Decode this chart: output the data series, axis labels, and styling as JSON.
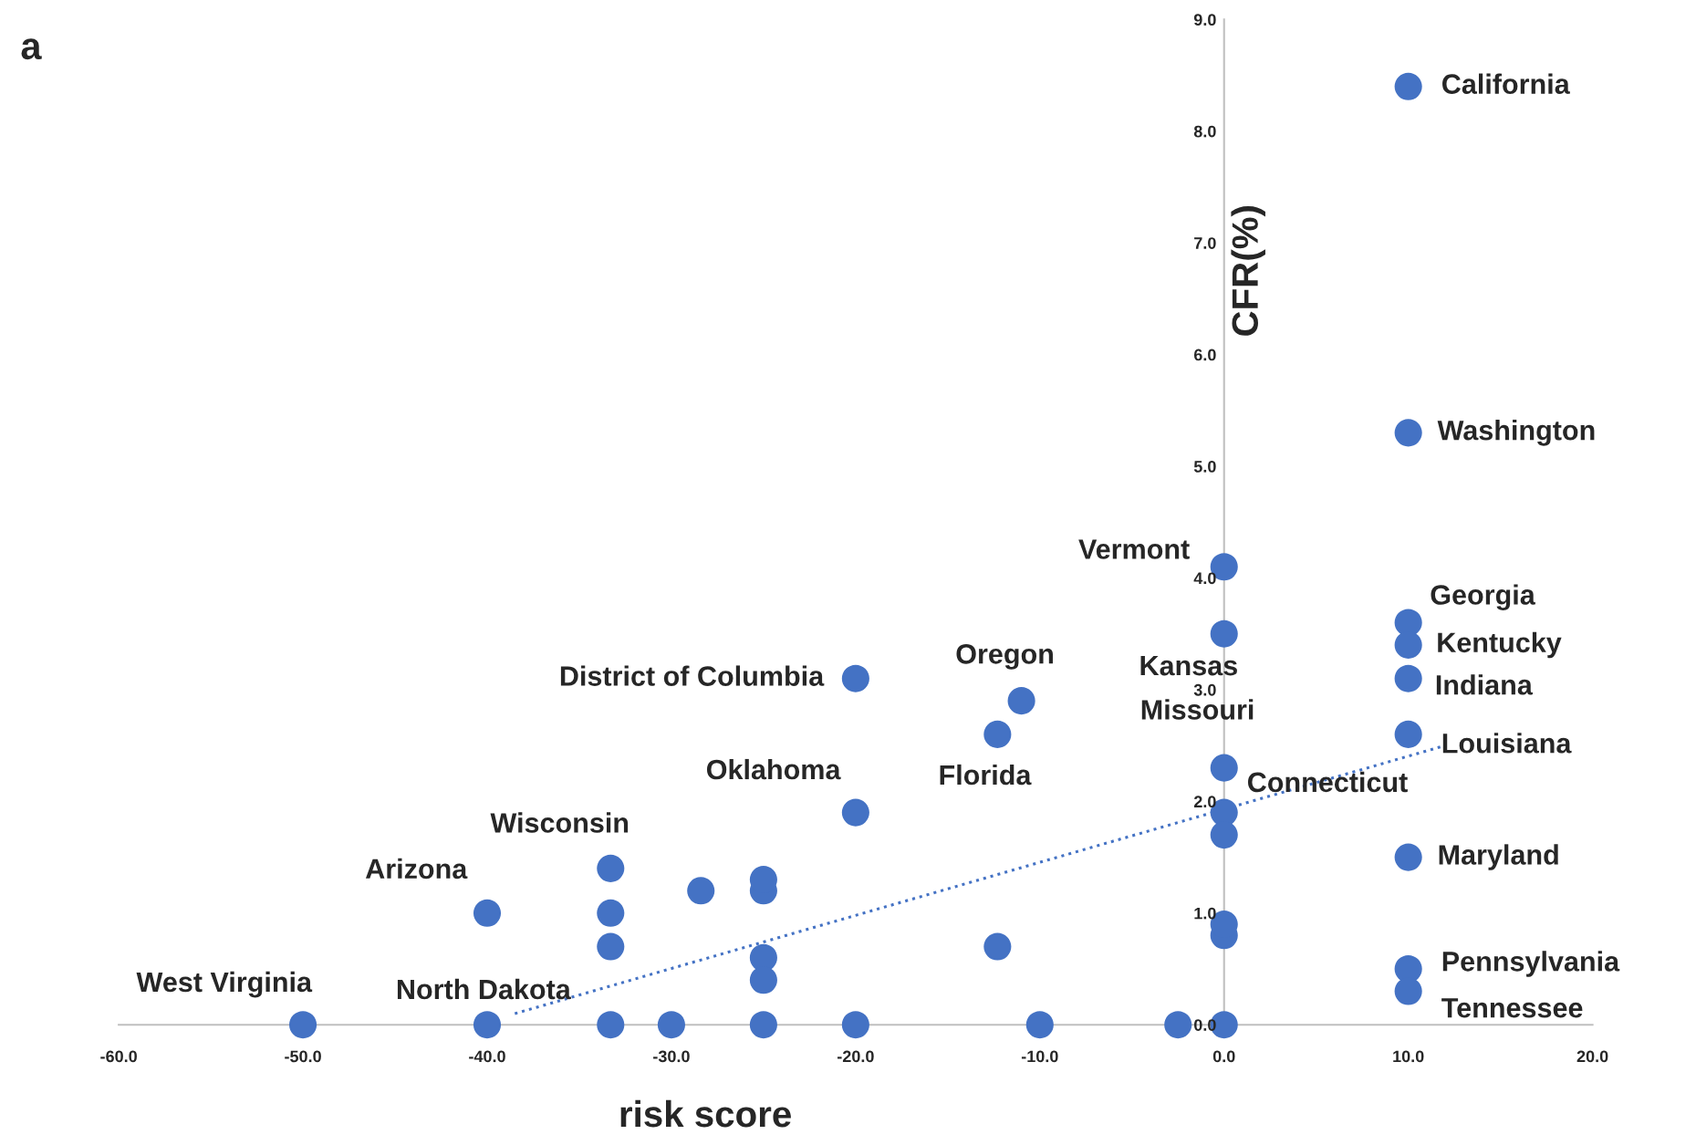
{
  "chart_data": {
    "type": "scatter",
    "xlabel": "risk score",
    "ylabel": "CFR(%)",
    "xlim": [
      -60,
      20
    ],
    "ylim": [
      0,
      9
    ],
    "xticks": [
      {
        "value": -60,
        "label": "-60.0"
      },
      {
        "value": -50,
        "label": "-50.0"
      },
      {
        "value": -40,
        "label": "-40.0"
      },
      {
        "value": -30,
        "label": "-30.0"
      },
      {
        "value": -20,
        "label": "-20.0"
      },
      {
        "value": -10,
        "label": "-10.0"
      },
      {
        "value": 0,
        "label": "0.0"
      },
      {
        "value": 10,
        "label": "10.0"
      },
      {
        "value": 20,
        "label": "20.0"
      }
    ],
    "yticks": [
      {
        "value": 0,
        "label": "0.0"
      },
      {
        "value": 1,
        "label": "1.0"
      },
      {
        "value": 2,
        "label": "2.0"
      },
      {
        "value": 3,
        "label": "3.0"
      },
      {
        "value": 4,
        "label": "4.0"
      },
      {
        "value": 5,
        "label": "5.0"
      },
      {
        "value": 6,
        "label": "6.0"
      },
      {
        "value": 7,
        "label": "7.0"
      },
      {
        "value": 8,
        "label": "8.0"
      },
      {
        "value": 9,
        "label": "9.0"
      }
    ],
    "grid": false,
    "legend": false,
    "series": [
      {
        "marker": "circle",
        "color": "#4472c4",
        "x": [
          10,
          10,
          0,
          0,
          10,
          10,
          10,
          10,
          -20,
          -11,
          -12.3,
          -20,
          0,
          0,
          0,
          10,
          0,
          0,
          10,
          10,
          0,
          -2.5,
          -33.3,
          -33.3,
          -33.3,
          -40,
          -28.4,
          -25,
          -25,
          -25,
          -25,
          -12.3,
          -50,
          -40,
          -33.3,
          -30,
          -25,
          -20,
          -10
        ],
        "values": [
          8.4,
          5.3,
          4.1,
          3.5,
          3.6,
          3.4,
          3.1,
          2.6,
          3.1,
          2.9,
          2.6,
          1.9,
          2.3,
          1.9,
          1.7,
          1.5,
          0.8,
          0.9,
          0.5,
          0.3,
          0,
          0,
          1.4,
          1.0,
          0.7,
          1.0,
          1.2,
          1.2,
          1.3,
          0.6,
          0.4,
          0.7,
          0,
          0,
          0,
          0,
          0,
          0,
          0
        ]
      },
      {
        "type": "line",
        "color": "#4472c4",
        "line_style": "dotted",
        "x": [
          -38.5,
          12
        ],
        "values": [
          0.1,
          2.5
        ]
      }
    ],
    "annotations": [
      {
        "text": "California",
        "x": 10,
        "y": 8.4
      },
      {
        "text": "Washington",
        "x": 10,
        "y": 5.3
      },
      {
        "text": "Vermont",
        "x": 0,
        "y": 4.1
      },
      {
        "text": "Georgia",
        "x": 10,
        "y": 3.6
      },
      {
        "text": "Kentucky",
        "x": 10,
        "y": 3.4
      },
      {
        "text": "Indiana",
        "x": 10,
        "y": 3.1
      },
      {
        "text": "Louisiana",
        "x": 10,
        "y": 2.6
      },
      {
        "text": "Kansas",
        "x": 0,
        "y": 3.5
      },
      {
        "text": "Missouri",
        "x": 0,
        "y": 2.3
      },
      {
        "text": "Connecticut",
        "x": 0,
        "y": 1.9
      },
      {
        "text": "Maryland",
        "x": 10,
        "y": 1.5
      },
      {
        "text": "Pennsylvania",
        "x": 10,
        "y": 0.5
      },
      {
        "text": "Tennessee",
        "x": 10,
        "y": 0.3
      },
      {
        "text": "District of Columbia",
        "x": -20,
        "y": 3.1
      },
      {
        "text": "Oregon",
        "x": -11,
        "y": 2.9
      },
      {
        "text": "Florida",
        "x": -12.3,
        "y": 2.6
      },
      {
        "text": "Oklahoma",
        "x": -20,
        "y": 1.9
      },
      {
        "text": "Wisconsin",
        "x": -33.3,
        "y": 1.4
      },
      {
        "text": "Arizona",
        "x": -40,
        "y": 1.0
      },
      {
        "text": "North Dakota",
        "x": -40,
        "y": 0
      },
      "West Virginia",
      "a"
    ]
  }
}
